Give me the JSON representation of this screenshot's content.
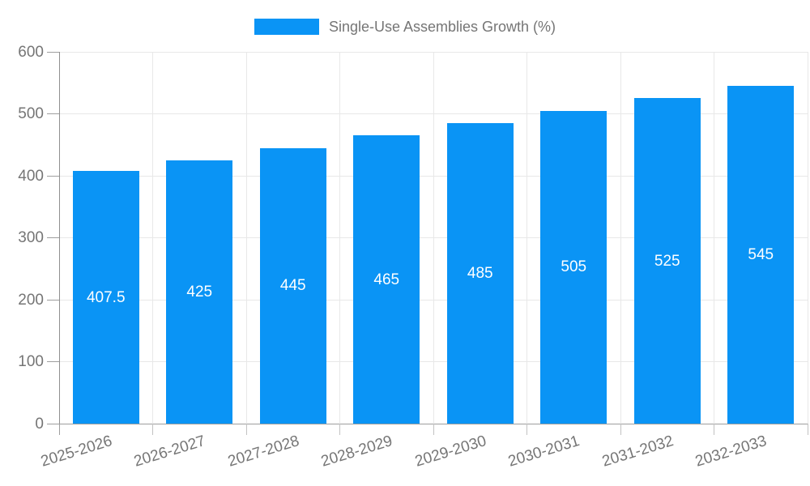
{
  "chart_data": {
    "type": "bar",
    "series_name": "Single-Use Assemblies Growth (%)",
    "categories": [
      "2025-2026",
      "2026-2027",
      "2027-2028",
      "2028-2029",
      "2029-2030",
      "2030-2031",
      "2031-2032",
      "2032-2033"
    ],
    "values": [
      407.5,
      425,
      445,
      465,
      485,
      505,
      525,
      545
    ],
    "data_labels": [
      "407.5",
      "425",
      "445",
      "465",
      "485",
      "505",
      "525",
      "545"
    ],
    "title": "",
    "xlabel": "",
    "ylabel": "",
    "ylim": [
      0,
      600
    ],
    "yticks": [
      0,
      100,
      200,
      300,
      400,
      500,
      600
    ],
    "grid": true,
    "legend_position": "top-center",
    "bar_color": "#0a94f5",
    "data_label_color": "#ffffff",
    "tick_label_color": "#757575",
    "x_label_rotation_deg": -17
  }
}
